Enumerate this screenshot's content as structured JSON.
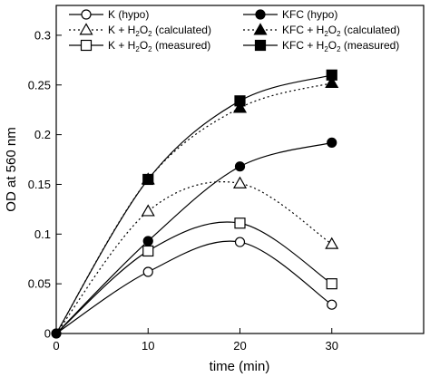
{
  "chart_data": {
    "type": "line",
    "xlabel": "time (min)",
    "ylabel": "OD at 560 nm",
    "xlim": [
      0,
      40
    ],
    "ylim": [
      0,
      0.33
    ],
    "x_ticks": [
      0,
      10,
      20,
      30
    ],
    "x_tick_labels": [
      "0",
      "10",
      "20",
      "30"
    ],
    "y_ticks": [
      0,
      0.05,
      0.1,
      0.15,
      0.2,
      0.25,
      0.3
    ],
    "y_tick_labels": [
      "0",
      "0.05",
      "0.1",
      "0.15",
      "0.2",
      "0.25",
      "0.3"
    ],
    "grid": false,
    "legend_position": "top",
    "x": [
      0,
      10,
      20,
      30
    ],
    "series": [
      {
        "name": "K (hypo)",
        "marker": "circle-open",
        "line": "solid",
        "values": [
          0,
          0.062,
          0.092,
          0.029
        ]
      },
      {
        "name": "KFC (hypo)",
        "marker": "circle-filled",
        "line": "solid",
        "values": [
          0,
          0.093,
          0.168,
          0.192
        ]
      },
      {
        "name": "K + H2O2 (calculated)",
        "marker": "triangle-open",
        "line": "dotted",
        "values": [
          0,
          0.123,
          0.151,
          0.09
        ]
      },
      {
        "name": "KFC + H2O2 (calculated)",
        "marker": "triangle-filled",
        "line": "dotted",
        "values": [
          0,
          0.155,
          0.227,
          0.252
        ]
      },
      {
        "name": "K + H2O2 (measured)",
        "marker": "square-open",
        "line": "solid",
        "values": [
          0,
          0.083,
          0.111,
          0.05
        ]
      },
      {
        "name": "KFC + H2O2 (measured)",
        "marker": "square-filled",
        "line": "solid",
        "values": [
          0,
          0.155,
          0.234,
          0.26
        ]
      }
    ]
  }
}
